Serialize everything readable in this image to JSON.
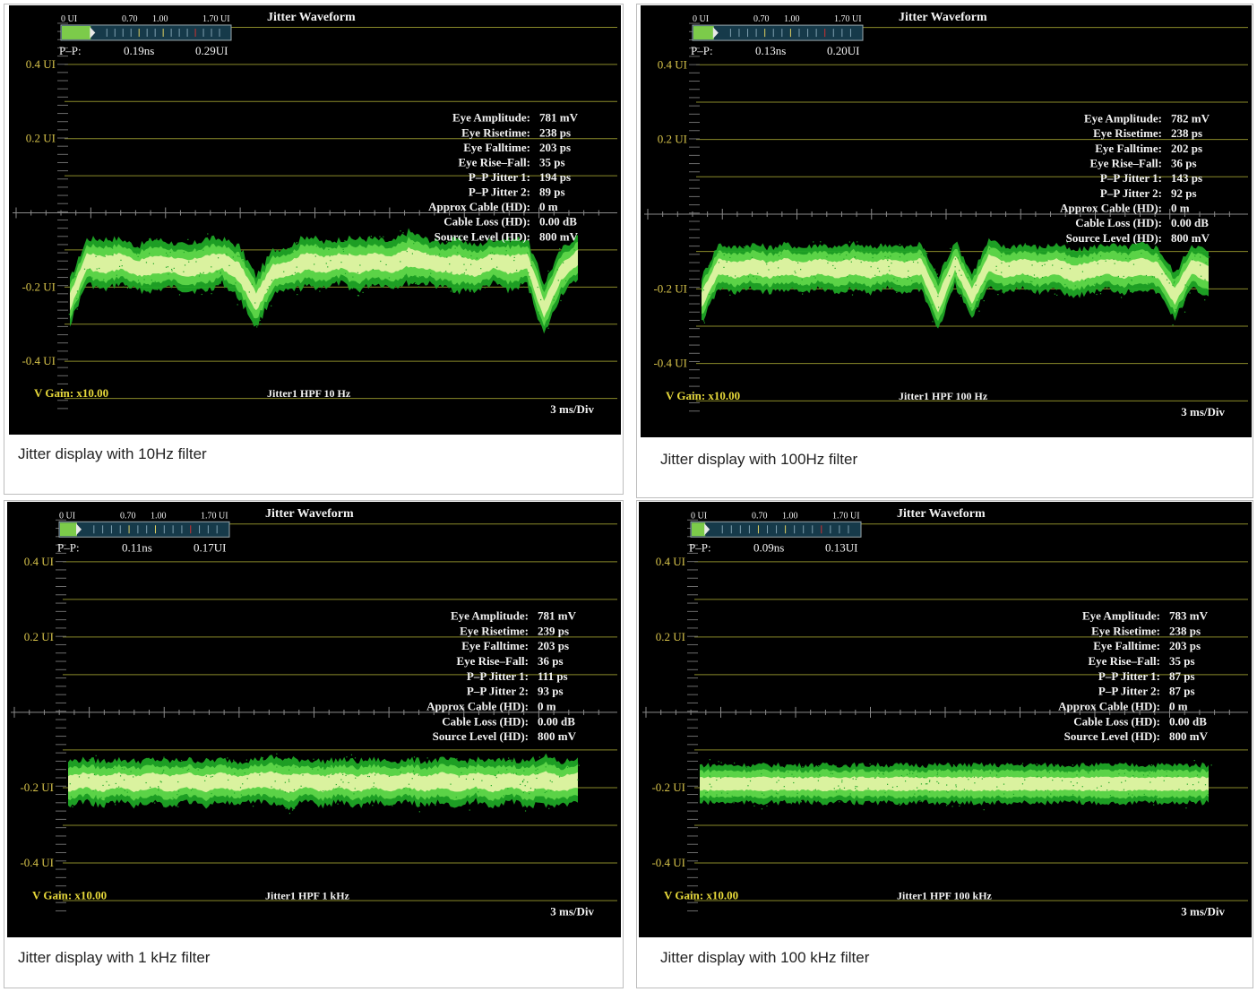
{
  "colors": {
    "screen_bg": "#000000",
    "grid_line": "#8a8a2a",
    "axis_label": "#d7c34a",
    "text": "#f2f2f2",
    "trace_outer": "#1fa626",
    "trace_mid": "#5fd64a",
    "trace_core": "#e8f5a8",
    "vgain_text": "#e6d83a",
    "meter_fill": "#7ccb4a",
    "meter_bg": "#163a4a"
  },
  "panels": [
    {
      "caption": "Jitter display with 10Hz filter",
      "title": "Jitter Waveform",
      "meter": {
        "scale_labels": [
          "0 UI",
          "0.70",
          "1.00",
          "1.70 UI"
        ],
        "pp_label": "P–P:",
        "pp_ns": "0.19ns",
        "pp_ui": "0.29UI",
        "fill_fraction": 0.17
      },
      "measurements": [
        {
          "label": "Eye Amplitude:",
          "value": "781 mV"
        },
        {
          "label": "Eye Risetime:",
          "value": "238 ps"
        },
        {
          "label": "Eye Falltime:",
          "value": "203 ps"
        },
        {
          "label": "Eye Rise–Fall:",
          "value": "35 ps"
        },
        {
          "label": "P–P Jitter 1:",
          "value": "194 ps"
        },
        {
          "label": "P–P Jitter 2:",
          "value": "89 ps"
        },
        {
          "label": "Approx Cable (HD):",
          "value": "0 m"
        },
        {
          "label": "Cable Loss (HD):",
          "value": "0.00 dB"
        },
        {
          "label": "Source Level (HD):",
          "value": "800 mV"
        }
      ],
      "vgain": "V Gain: x10.00",
      "filter_label": "Jitter1 HPF 10 Hz",
      "timebase": "3 ms/Div",
      "chart_data": {
        "type": "line",
        "ylabel_ticks": [
          "0.4 UI",
          "0.2 UI",
          "-0.2 UI",
          "-0.4 UI"
        ],
        "y_tick_values": [
          0.4,
          0.2,
          -0.2,
          -0.4
        ],
        "ylim": [
          -0.5,
          0.5
        ],
        "x": [
          0,
          0.5,
          1,
          1.5,
          2,
          2.5,
          3,
          3.5,
          4,
          4.5,
          5,
          5.5,
          6,
          6.5,
          7,
          7.5,
          8,
          8.5,
          9,
          9.5,
          10,
          10.5,
          11,
          11.5,
          12,
          12.5,
          13,
          13.5,
          14,
          14.5,
          15
        ],
        "center": [
          -0.24,
          -0.13,
          -0.14,
          -0.13,
          -0.15,
          -0.14,
          -0.14,
          -0.15,
          -0.14,
          -0.13,
          -0.16,
          -0.24,
          -0.16,
          -0.15,
          -0.13,
          -0.14,
          -0.13,
          -0.14,
          -0.13,
          -0.14,
          -0.12,
          -0.13,
          -0.14,
          -0.14,
          -0.15,
          -0.13,
          -0.14,
          -0.13,
          -0.26,
          -0.16,
          -0.12
        ],
        "spread": [
          0.06,
          0.06,
          0.07,
          0.06,
          0.06,
          0.07,
          0.06,
          0.06,
          0.07,
          0.06,
          0.07,
          0.07,
          0.06,
          0.06,
          0.07,
          0.06,
          0.06,
          0.07,
          0.06,
          0.06,
          0.07,
          0.06,
          0.06,
          0.07,
          0.06,
          0.06,
          0.07,
          0.06,
          0.07,
          0.06,
          0.06
        ],
        "xlim": [
          0,
          15
        ],
        "x_unit_per_div": "3 ms/Div"
      }
    },
    {
      "caption": "Jitter display with 100Hz filter",
      "title": "Jitter Waveform",
      "meter": {
        "scale_labels": [
          "0 UI",
          "0.70",
          "1.00",
          "1.70 UI"
        ],
        "pp_label": "P–P:",
        "pp_ns": "0.13ns",
        "pp_ui": "0.20UI",
        "fill_fraction": 0.12
      },
      "measurements": [
        {
          "label": "Eye Amplitude:",
          "value": "782 mV"
        },
        {
          "label": "Eye Risetime:",
          "value": "238 ps"
        },
        {
          "label": "Eye Falltime:",
          "value": "202 ps"
        },
        {
          "label": "Eye Rise–Fall:",
          "value": "36 ps"
        },
        {
          "label": "P–P Jitter 1:",
          "value": "143 ps"
        },
        {
          "label": "P–P Jitter 2:",
          "value": "92 ps"
        },
        {
          "label": "Approx Cable (HD):",
          "value": "0 m"
        },
        {
          "label": "Cable Loss (HD):",
          "value": "0.00 dB"
        },
        {
          "label": "Source Level (HD):",
          "value": "800 mV"
        }
      ],
      "vgain": "V Gain: x10.00",
      "filter_label": "Jitter1 HPF 100 Hz",
      "timebase": "3 ms/Div",
      "chart_data": {
        "type": "line",
        "ylabel_ticks": [
          "0.4 UI",
          "0.2 UI",
          "-0.2 UI",
          "-0.4 UI"
        ],
        "y_tick_values": [
          0.4,
          0.2,
          -0.2,
          -0.4
        ],
        "ylim": [
          -0.5,
          0.5
        ],
        "x": [
          0,
          0.5,
          1,
          1.5,
          2,
          2.5,
          3,
          3.5,
          4,
          4.5,
          5,
          5.5,
          6,
          6.5,
          7,
          7.5,
          8,
          8.5,
          9,
          9.5,
          10,
          10.5,
          11,
          11.5,
          12,
          12.5,
          13,
          13.5,
          14,
          14.5,
          15
        ],
        "center": [
          -0.23,
          -0.14,
          -0.15,
          -0.14,
          -0.15,
          -0.14,
          -0.15,
          -0.14,
          -0.15,
          -0.14,
          -0.15,
          -0.14,
          -0.15,
          -0.14,
          -0.24,
          -0.13,
          -0.22,
          -0.13,
          -0.15,
          -0.14,
          -0.15,
          -0.14,
          -0.16,
          -0.15,
          -0.14,
          -0.15,
          -0.14,
          -0.15,
          -0.22,
          -0.14,
          -0.16
        ],
        "spread": [
          0.06,
          0.06,
          0.06,
          0.06,
          0.06,
          0.06,
          0.06,
          0.06,
          0.06,
          0.06,
          0.06,
          0.06,
          0.06,
          0.06,
          0.07,
          0.06,
          0.06,
          0.06,
          0.06,
          0.06,
          0.06,
          0.06,
          0.06,
          0.06,
          0.06,
          0.06,
          0.06,
          0.06,
          0.06,
          0.06,
          0.06
        ],
        "xlim": [
          0,
          15
        ],
        "x_unit_per_div": "3 ms/Div"
      }
    },
    {
      "caption": "Jitter display with 1 kHz filter",
      "title": "Jitter Waveform",
      "meter": {
        "scale_labels": [
          "0 UI",
          "0.70",
          "1.00",
          "1.70 UI"
        ],
        "pp_label": "P–P:",
        "pp_ns": "0.11ns",
        "pp_ui": "0.17UI",
        "fill_fraction": 0.1
      },
      "measurements": [
        {
          "label": "Eye Amplitude:",
          "value": "781 mV"
        },
        {
          "label": "Eye Risetime:",
          "value": "239 ps"
        },
        {
          "label": "Eye Falltime:",
          "value": "203 ps"
        },
        {
          "label": "Eye Rise–Fall:",
          "value": "36 ps"
        },
        {
          "label": "P–P Jitter 1:",
          "value": "111 ps"
        },
        {
          "label": "P–P Jitter 2:",
          "value": "93 ps"
        },
        {
          "label": "Approx Cable (HD):",
          "value": "0 m"
        },
        {
          "label": "Cable Loss (HD):",
          "value": "0.00 dB"
        },
        {
          "label": "Source Level (HD):",
          "value": "800 mV"
        }
      ],
      "vgain": "V Gain: x10.00",
      "filter_label": "Jitter1 HPF 1 kHz",
      "timebase": "3 ms/Div",
      "chart_data": {
        "type": "line",
        "ylabel_ticks": [
          "0.4 UI",
          "0.2 UI",
          "-0.2 UI",
          "-0.4 UI"
        ],
        "y_tick_values": [
          0.4,
          0.2,
          -0.2,
          -0.4
        ],
        "ylim": [
          -0.5,
          0.5
        ],
        "x": [
          0,
          0.5,
          1,
          1.5,
          2,
          2.5,
          3,
          3.5,
          4,
          4.5,
          5,
          5.5,
          6,
          6.5,
          7,
          7.5,
          8,
          8.5,
          9,
          9.5,
          10,
          10.5,
          11,
          11.5,
          12,
          12.5,
          13,
          13.5,
          14,
          14.5,
          15
        ],
        "center": [
          -0.19,
          -0.18,
          -0.19,
          -0.18,
          -0.19,
          -0.18,
          -0.19,
          -0.18,
          -0.19,
          -0.18,
          -0.19,
          -0.18,
          -0.18,
          -0.19,
          -0.18,
          -0.19,
          -0.18,
          -0.19,
          -0.18,
          -0.19,
          -0.18,
          -0.19,
          -0.18,
          -0.19,
          -0.18,
          -0.19,
          -0.18,
          -0.19,
          -0.18,
          -0.19,
          -0.18
        ],
        "spread": [
          0.06,
          0.055,
          0.06,
          0.055,
          0.06,
          0.055,
          0.06,
          0.055,
          0.06,
          0.055,
          0.06,
          0.055,
          0.06,
          0.065,
          0.055,
          0.06,
          0.055,
          0.06,
          0.055,
          0.06,
          0.055,
          0.06,
          0.055,
          0.06,
          0.055,
          0.06,
          0.055,
          0.06,
          0.065,
          0.055,
          0.06
        ],
        "xlim": [
          0,
          15
        ],
        "x_unit_per_div": "3 ms/Div"
      }
    },
    {
      "caption": "Jitter display with 100 kHz filter",
      "title": "Jitter Waveform",
      "meter": {
        "scale_labels": [
          "0 UI",
          "0.70",
          "1.00",
          "1.70 UI"
        ],
        "pp_label": "P–P:",
        "pp_ns": "0.09ns",
        "pp_ui": "0.13UI",
        "fill_fraction": 0.08
      },
      "measurements": [
        {
          "label": "Eye Amplitude:",
          "value": "783 mV"
        },
        {
          "label": "Eye Risetime:",
          "value": "238 ps"
        },
        {
          "label": "Eye Falltime:",
          "value": "203 ps"
        },
        {
          "label": "Eye Rise–Fall:",
          "value": "35 ps"
        },
        {
          "label": "P–P Jitter 1:",
          "value": "87 ps"
        },
        {
          "label": "P–P Jitter 2:",
          "value": "87 ps"
        },
        {
          "label": "Approx Cable (HD):",
          "value": "0 m"
        },
        {
          "label": "Cable Loss (HD):",
          "value": "0.00 dB"
        },
        {
          "label": "Source Level (HD):",
          "value": "800 mV"
        }
      ],
      "vgain": "V Gain: x10.00",
      "filter_label": "Jitter1 HPF 100 kHz",
      "timebase": "3 ms/Div",
      "chart_data": {
        "type": "line",
        "ylabel_ticks": [
          "0.4 UI",
          "0.2 UI",
          "-0.2 UI",
          "-0.4 UI"
        ],
        "y_tick_values": [
          0.4,
          0.2,
          -0.2,
          -0.4
        ],
        "ylim": [
          -0.5,
          0.5
        ],
        "x": [
          0,
          0.5,
          1,
          1.5,
          2,
          2.5,
          3,
          3.5,
          4,
          4.5,
          5,
          5.5,
          6,
          6.5,
          7,
          7.5,
          8,
          8.5,
          9,
          9.5,
          10,
          10.5,
          11,
          11.5,
          12,
          12.5,
          13,
          13.5,
          14,
          14.5,
          15
        ],
        "center": [
          -0.19,
          -0.19,
          -0.19,
          -0.19,
          -0.19,
          -0.19,
          -0.19,
          -0.19,
          -0.19,
          -0.19,
          -0.19,
          -0.19,
          -0.19,
          -0.19,
          -0.19,
          -0.19,
          -0.19,
          -0.19,
          -0.19,
          -0.19,
          -0.19,
          -0.19,
          -0.19,
          -0.19,
          -0.19,
          -0.19,
          -0.19,
          -0.19,
          -0.19,
          -0.19,
          -0.19
        ],
        "spread": [
          0.05,
          0.05,
          0.05,
          0.05,
          0.05,
          0.05,
          0.05,
          0.05,
          0.05,
          0.05,
          0.05,
          0.05,
          0.05,
          0.05,
          0.05,
          0.05,
          0.05,
          0.05,
          0.05,
          0.05,
          0.05,
          0.05,
          0.05,
          0.05,
          0.05,
          0.05,
          0.05,
          0.05,
          0.05,
          0.05,
          0.05
        ],
        "xlim": [
          0,
          15
        ],
        "x_unit_per_div": "3 ms/Div"
      }
    }
  ]
}
